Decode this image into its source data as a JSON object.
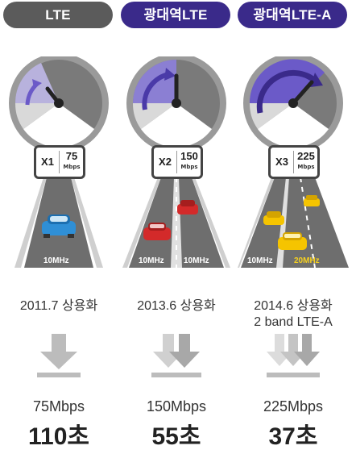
{
  "columns": [
    {
      "tag": "LTE",
      "multiplier": "X1",
      "rate": "75",
      "unit": "Mbps",
      "bands": [
        "10MHz"
      ],
      "release_lines": [
        "2011.7 상용화"
      ],
      "speed": "75Mbps",
      "time": "110초"
    },
    {
      "tag": "광대역LTE",
      "multiplier": "X2",
      "rate": "150",
      "unit": "Mbps",
      "bands": [
        "10MHz",
        "10MHz"
      ],
      "release_lines": [
        "2013.6 상용화"
      ],
      "speed": "150Mbps",
      "time": "55초"
    },
    {
      "tag": "광대역LTE-A",
      "multiplier": "X3",
      "rate": "225",
      "unit": "Mbps",
      "bands": [
        "10MHz",
        "20MHz"
      ],
      "release_lines": [
        "2014.6 상용화",
        "2 band LTE-A"
      ],
      "speed": "225Mbps",
      "time": "37초"
    }
  ],
  "colors": {
    "pill_gray": "#5b5b5b",
    "pill_purple": "#3a2a8a",
    "gauge_purple": "#6b5ac8",
    "band_highlight": "#f5d020"
  }
}
